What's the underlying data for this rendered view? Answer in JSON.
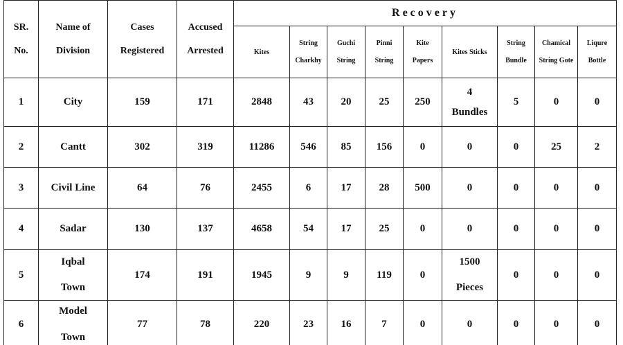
{
  "table": {
    "main_headers": [
      "SR.\nNo.",
      "Name of\nDivision",
      "Cases\nRegistered",
      "Accused\nArrested"
    ],
    "group_header": "Recovery",
    "sub_headers": [
      "Kites",
      "String\nCharkhy",
      "Guchi\nString",
      "Pinni\nString",
      "Kite\nPapers",
      "Kites Sticks",
      "String\nBundle",
      "Chamical\nString Gote",
      "Liqure\nBottle"
    ],
    "rows": [
      [
        1,
        "City",
        159,
        171,
        2848,
        43,
        20,
        25,
        250,
        "4\nBundles",
        5,
        0,
        0
      ],
      [
        2,
        "Cantt",
        302,
        319,
        11286,
        546,
        85,
        156,
        0,
        0,
        0,
        25,
        2
      ],
      [
        3,
        "Civil Line",
        64,
        76,
        2455,
        6,
        17,
        28,
        500,
        0,
        0,
        0,
        0
      ],
      [
        4,
        "Sadar",
        130,
        137,
        4658,
        54,
        17,
        25,
        0,
        0,
        0,
        0,
        0
      ],
      [
        5,
        "Iqbal\n\nTown",
        174,
        191,
        1945,
        9,
        9,
        119,
        0,
        "1500\n\nPieces",
        0,
        0,
        0
      ],
      [
        6,
        "Model\n\nTown",
        77,
        78,
        220,
        23,
        16,
        7,
        0,
        0,
        0,
        0,
        0
      ]
    ]
  }
}
